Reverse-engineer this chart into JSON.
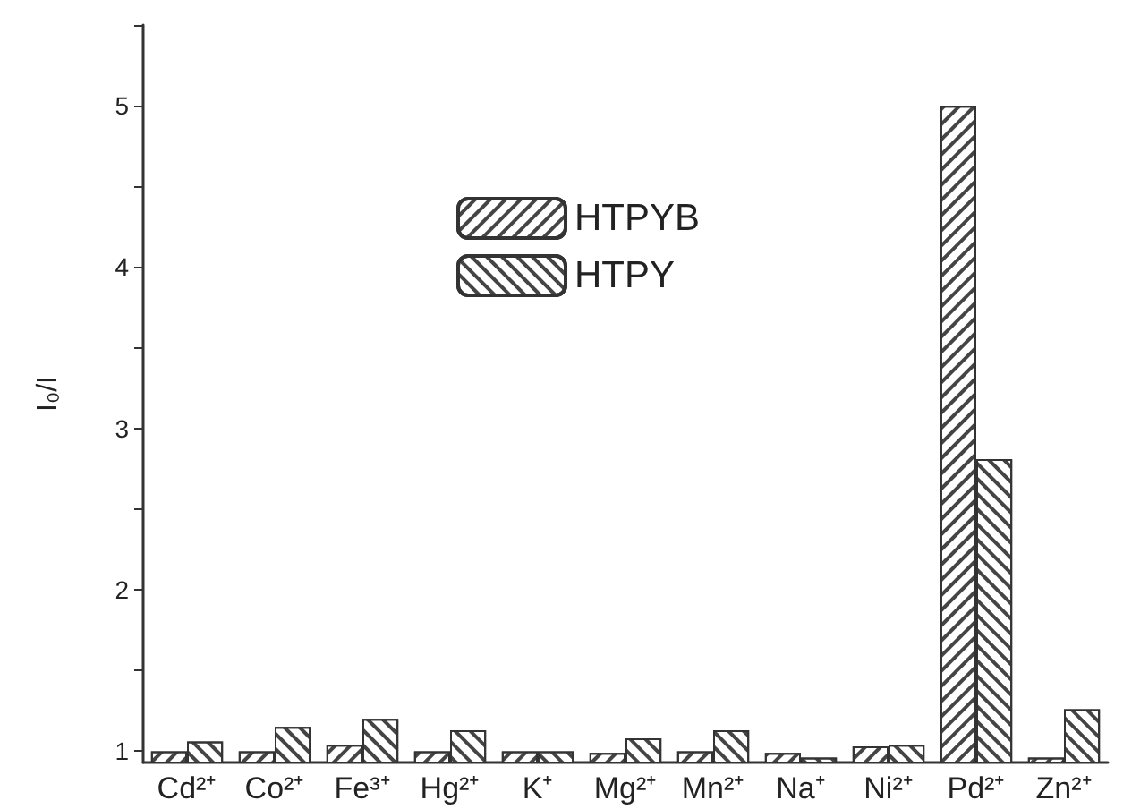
{
  "chart_data": {
    "type": "bar",
    "ylabel": "I₀/I",
    "categories": [
      "Cd²⁺",
      "Co²⁺",
      "Fe³⁺",
      "Hg²⁺",
      "K⁺",
      "Mg²⁺",
      "Mn²⁺",
      "Na⁺",
      "Ni²⁺",
      "Pd²⁺",
      "Zn²⁺"
    ],
    "series": [
      {
        "name": "HTPYB",
        "color": "#ffffff",
        "values": [
          1.0,
          1.0,
          1.04,
          1.0,
          1.0,
          0.99,
          1.0,
          0.99,
          1.03,
          5.0,
          0.96
        ]
      },
      {
        "name": "HTPY",
        "color": "#ffffff",
        "values": [
          1.06,
          1.15,
          1.2,
          1.13,
          1.0,
          1.08,
          1.13,
          0.96,
          1.04,
          2.81,
          1.26
        ]
      }
    ],
    "ylim": [
      0.93,
      5.5
    ],
    "yticks": [
      1,
      {
        "value": 1.5,
        "label": null
      },
      2,
      {
        "value": 2.5,
        "label": null
      },
      3,
      {
        "value": 3.5,
        "label": null
      },
      4,
      {
        "value": 4.5,
        "label": null
      },
      5,
      {
        "value": 5.5,
        "label": null
      }
    ],
    "grid": false,
    "legend": "top"
  }
}
